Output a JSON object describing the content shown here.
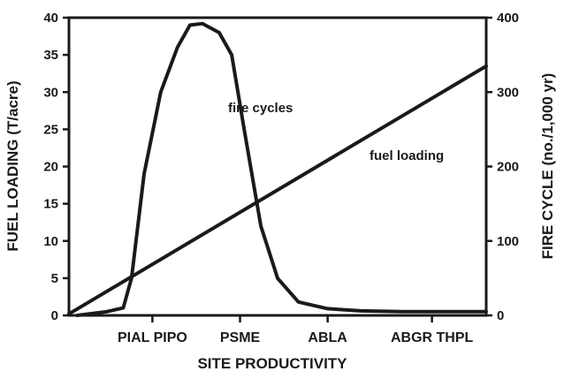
{
  "chart_data": {
    "type": "line",
    "xlabel": "SITE PRODUCTIVITY",
    "ylabel_left": "FUEL LOADING (T/acre)",
    "ylabel_right": "FIRE CYCLE (no./1,000 yr)",
    "ylim_left": [
      0,
      40
    ],
    "ylim_right": [
      0,
      400
    ],
    "yticks_left": [
      0,
      5,
      10,
      15,
      20,
      25,
      30,
      35,
      40
    ],
    "yticks_right": [
      0,
      100,
      200,
      300,
      400
    ],
    "xlim": [
      0,
      10
    ],
    "categories": [
      {
        "label": "PIAL PIPO",
        "x": 2.0
      },
      {
        "label": "PSME",
        "x": 4.1
      },
      {
        "label": "ABLA",
        "x": 6.2
      },
      {
        "label": "ABGR THPL",
        "x": 8.7
      }
    ],
    "grid": false,
    "series": [
      {
        "name": "fire cycles",
        "axis": "right",
        "x": [
          0.2,
          0.9,
          1.3,
          1.5,
          1.8,
          2.2,
          2.6,
          2.9,
          3.2,
          3.6,
          3.9,
          4.2,
          4.6,
          5.0,
          5.5,
          6.2,
          7.0,
          8.0,
          9.0,
          10.0
        ],
        "y": [
          0,
          5,
          10,
          50,
          190,
          300,
          360,
          390,
          392,
          380,
          350,
          250,
          120,
          50,
          18,
          9,
          6,
          5,
          5,
          5
        ]
      },
      {
        "name": "fuel loading",
        "axis": "left",
        "x": [
          0.0,
          10.0
        ],
        "y": [
          0.2,
          33.5
        ]
      }
    ],
    "annotations": [
      {
        "text": "fire cycles",
        "series": "fire cycles"
      },
      {
        "text": "fuel loading",
        "series": "fuel loading"
      }
    ]
  }
}
